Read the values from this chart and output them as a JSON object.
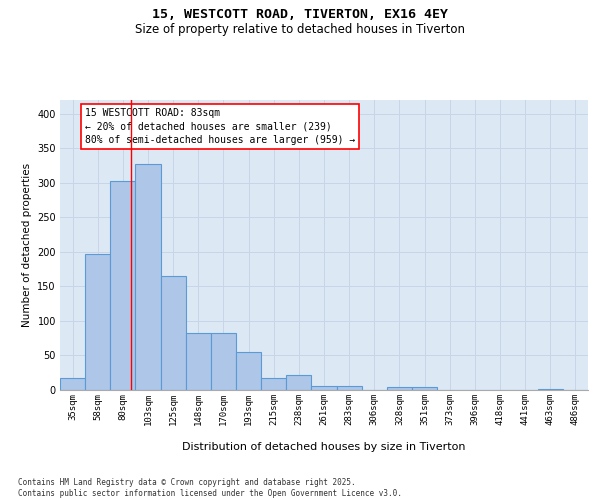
{
  "title1": "15, WESTCOTT ROAD, TIVERTON, EX16 4EY",
  "title2": "Size of property relative to detached houses in Tiverton",
  "xlabel": "Distribution of detached houses by size in Tiverton",
  "ylabel": "Number of detached properties",
  "categories": [
    "35sqm",
    "58sqm",
    "80sqm",
    "103sqm",
    "125sqm",
    "148sqm",
    "170sqm",
    "193sqm",
    "215sqm",
    "238sqm",
    "261sqm",
    "283sqm",
    "306sqm",
    "328sqm",
    "351sqm",
    "373sqm",
    "396sqm",
    "418sqm",
    "441sqm",
    "463sqm",
    "486sqm"
  ],
  "values": [
    18,
    197,
    303,
    328,
    165,
    82,
    82,
    55,
    18,
    22,
    6,
    6,
    0,
    5,
    5,
    0,
    0,
    0,
    0,
    2,
    0
  ],
  "bar_color": "#aec6e8",
  "bar_edge_color": "#5b9bd5",
  "bar_linewidth": 0.8,
  "grid_color": "#c8d4e8",
  "bg_color": "#dde8f5",
  "red_line_x": 2.33,
  "annotation_text": "15 WESTCOTT ROAD: 83sqm\n← 20% of detached houses are smaller (239)\n80% of semi-detached houses are larger (959) →",
  "footnote": "Contains HM Land Registry data © Crown copyright and database right 2025.\nContains public sector information licensed under the Open Government Licence v3.0.",
  "ylim": [
    0,
    420
  ],
  "yticks": [
    0,
    50,
    100,
    150,
    200,
    250,
    300,
    350,
    400
  ]
}
